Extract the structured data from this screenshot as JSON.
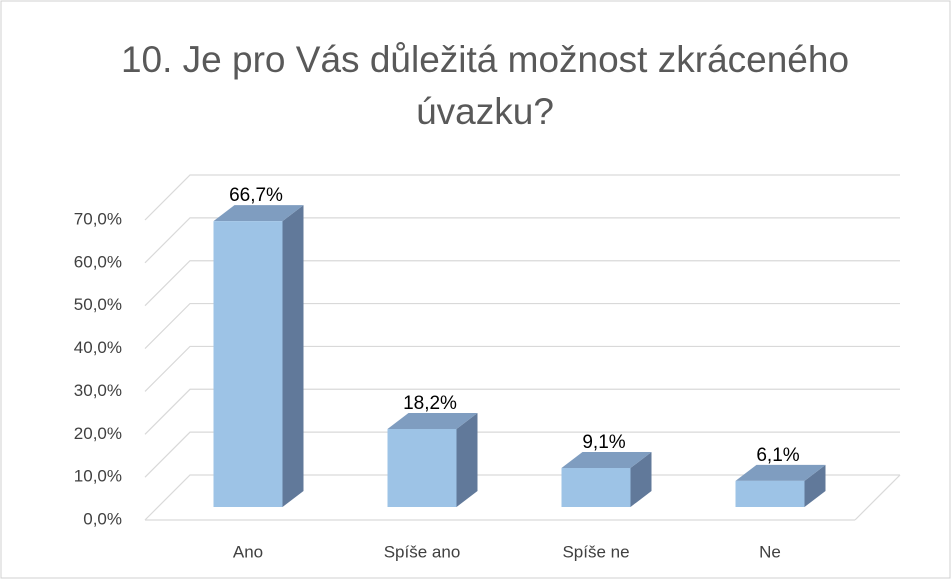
{
  "chart_data": {
    "type": "bar3d",
    "title": "10. Je pro Vás důležitá možnost zkráceného úvazku?",
    "categories": [
      "Ano",
      "Spíše ano",
      "Spíše ne",
      "Ne"
    ],
    "values": [
      66.7,
      18.2,
      9.1,
      6.1
    ],
    "value_labels": [
      "66,7%",
      "18,2%",
      "9,1%",
      "6,1%"
    ],
    "color": "#9dc3e6",
    "ylim": [
      0,
      70
    ],
    "yticks": [
      {
        "value": 0,
        "label": "0,0%"
      },
      {
        "value": 10,
        "label": "10,0%"
      },
      {
        "value": 20,
        "label": "20,0%"
      },
      {
        "value": 30,
        "label": "30,0%"
      },
      {
        "value": 40,
        "label": "40,0%"
      },
      {
        "value": 50,
        "label": "50,0%"
      },
      {
        "value": 60,
        "label": "60,0%"
      },
      {
        "value": 70,
        "label": "70,0%"
      }
    ],
    "grid": true
  }
}
